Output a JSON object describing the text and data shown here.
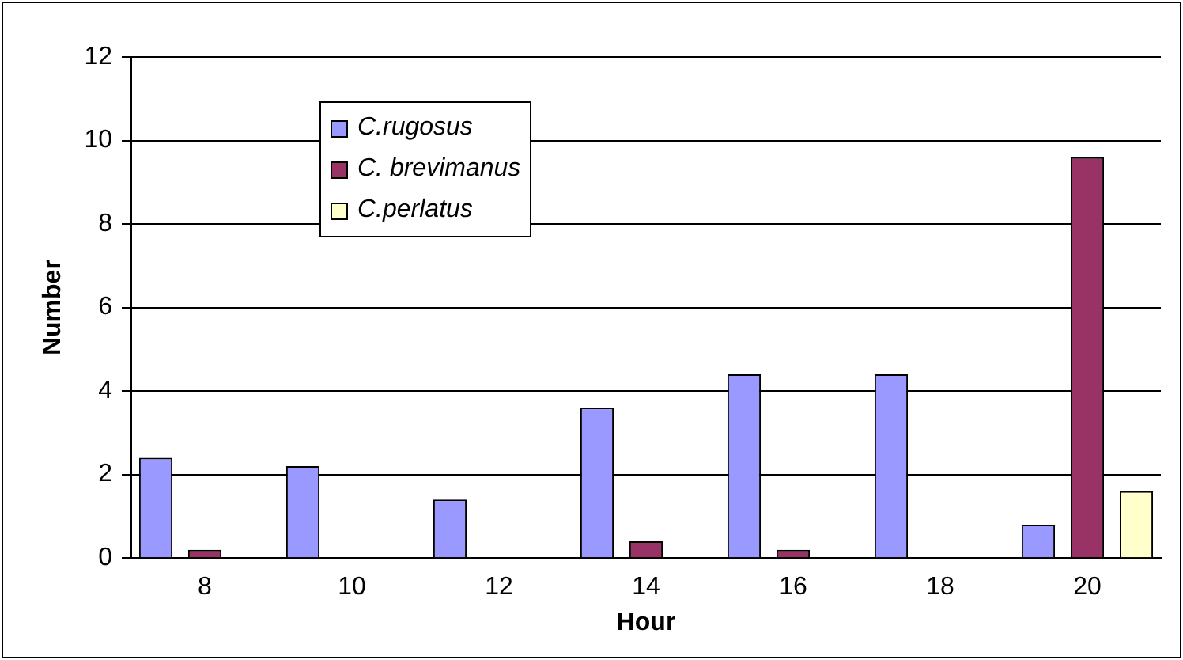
{
  "chart_data": {
    "type": "bar",
    "xlabel": "Hour",
    "ylabel": "Number",
    "categories": [
      "8",
      "10",
      "12",
      "14",
      "16",
      "18",
      "20"
    ],
    "series": [
      {
        "name": "C.rugosus",
        "color": "#9999ff",
        "values": [
          2.4,
          2.2,
          1.4,
          3.6,
          4.4,
          4.4,
          0.8
        ]
      },
      {
        "name": "C. brevimanus",
        "color": "#993366",
        "values": [
          0.2,
          0,
          0,
          0.4,
          0.2,
          0,
          9.6
        ]
      },
      {
        "name": "C.perlatus",
        "color": "#ffffcc",
        "values": [
          0,
          0,
          0,
          0,
          0,
          0,
          1.6
        ]
      }
    ],
    "ylim": [
      0,
      12
    ],
    "yticks": [
      0,
      2,
      4,
      6,
      8,
      10,
      12
    ],
    "grid": "y",
    "legend": "top left"
  }
}
